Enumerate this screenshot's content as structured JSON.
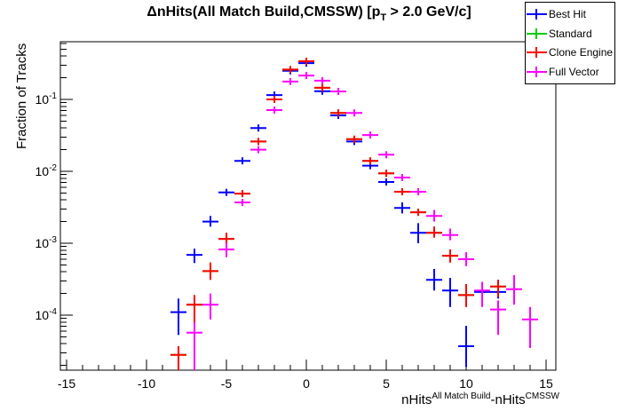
{
  "title": {
    "prefix": "ΔnHits(All Match Build,CMSSW) [p",
    "sub": "T",
    "suffix": " > 2.0 GeV/c]"
  },
  "xlabel_parts": {
    "base1": "nHits",
    "sup1": "All Match Build",
    "base2": "-nHits",
    "sup2": "CMSSW"
  },
  "legend": {
    "items": [
      {
        "label": "Best Hit",
        "color": "#0000ff"
      },
      {
        "label": "Standard",
        "color": "#00cc00"
      },
      {
        "label": "Clone Engine",
        "color": "#ff0000"
      },
      {
        "label": "Full Vector",
        "color": "#ff00ff"
      }
    ]
  },
  "colors": {
    "frame": "#000000",
    "background": "#ffffff"
  },
  "chart_data": {
    "type": "scatter",
    "title": "ΔnHits(All Match Build,CMSSW) [p_T > 2.0 GeV/c]",
    "xlabel": "nHits^{All Match Build}-nHits^{CMSSW}",
    "ylabel": "Fraction of Tracks",
    "x_ticks": [
      -15,
      -10,
      -5,
      0,
      5,
      10,
      15
    ],
    "y_tick_exponents": [
      -1,
      -2,
      -3,
      -4
    ],
    "xlim": [
      -15.5,
      15.6
    ],
    "ylim_log": [
      1.72e-05,
      0.65
    ],
    "y_scale": "log",
    "grid": false,
    "bin_width": 1,
    "legend_position": "top-right",
    "marker_style": "cross-with-error-bars",
    "series": [
      {
        "name": "Best Hit",
        "color": "#0000ff",
        "points": [
          [
            -8,
            0.00011,
            5.3e-05,
            0.00017
          ],
          [
            -7,
            0.00069,
            0.00053,
            0.00084
          ],
          [
            -6,
            0.002,
            0.0017,
            0.0024
          ],
          [
            -5,
            0.0051,
            null,
            null
          ],
          [
            -4,
            0.014,
            null,
            null
          ],
          [
            -3,
            0.04,
            null,
            null
          ],
          [
            -2,
            0.115,
            null,
            null
          ],
          [
            -1,
            0.25,
            null,
            null
          ],
          [
            0,
            0.32,
            null,
            null
          ],
          [
            1,
            0.13,
            null,
            null
          ],
          [
            2,
            0.06,
            null,
            null
          ],
          [
            3,
            0.026,
            null,
            null
          ],
          [
            4,
            0.012,
            null,
            null
          ],
          [
            5,
            0.0071,
            null,
            null
          ],
          [
            6,
            0.0031,
            0.0026,
            0.0037
          ],
          [
            7,
            0.0014,
            0.001,
            0.0019
          ],
          [
            8,
            0.00031,
            0.00022,
            0.00044
          ],
          [
            9,
            0.00022,
            0.00013,
            0.00033
          ],
          [
            10,
            3.7e-05,
            1.9e-05,
            7.1e-05
          ],
          [
            11,
            0.00021,
            0.00017,
            0.00026
          ],
          [
            12,
            0.00021,
            0.00017,
            0.00026
          ]
        ]
      },
      {
        "name": "Standard",
        "color": "#00cc00",
        "note": "identical to Clone Engine, drawn underneath and fully hidden",
        "points": [
          [
            -8,
            2.8e-05,
            1.6e-05,
            3.7e-05
          ],
          [
            -7,
            0.00014,
            1.6e-05,
            0.00019
          ],
          [
            -6,
            0.00041,
            0.00031,
            0.00054
          ],
          [
            -5,
            0.00115,
            0.00097,
            0.0014
          ],
          [
            -4,
            0.0049,
            null,
            null
          ],
          [
            -3,
            0.026,
            null,
            null
          ],
          [
            -2,
            0.1,
            null,
            null
          ],
          [
            -1,
            0.26,
            null,
            null
          ],
          [
            0,
            0.34,
            null,
            null
          ],
          [
            1,
            0.145,
            null,
            null
          ],
          [
            2,
            0.065,
            null,
            null
          ],
          [
            3,
            0.028,
            null,
            null
          ],
          [
            4,
            0.014,
            null,
            null
          ],
          [
            5,
            0.0094,
            null,
            null
          ],
          [
            6,
            0.0052,
            null,
            null
          ],
          [
            7,
            0.0027,
            null,
            null
          ],
          [
            8,
            0.0014,
            0.0012,
            0.0017
          ],
          [
            9,
            0.00067,
            0.00054,
            0.00082
          ],
          [
            10,
            0.00019,
            0.00013,
            0.00027
          ],
          [
            12,
            0.00025,
            0.00018,
            0.00031
          ]
        ]
      },
      {
        "name": "Clone Engine",
        "color": "#ff0000",
        "points": [
          [
            -8,
            2.8e-05,
            1.6e-05,
            3.7e-05
          ],
          [
            -7,
            0.00014,
            1.6e-05,
            0.00019
          ],
          [
            -6,
            0.00041,
            0.00031,
            0.00054
          ],
          [
            -5,
            0.00115,
            0.00097,
            0.0014
          ],
          [
            -4,
            0.0049,
            null,
            null
          ],
          [
            -3,
            0.026,
            null,
            null
          ],
          [
            -2,
            0.1,
            null,
            null
          ],
          [
            -1,
            0.26,
            null,
            null
          ],
          [
            0,
            0.34,
            null,
            null
          ],
          [
            1,
            0.145,
            null,
            null
          ],
          [
            2,
            0.065,
            null,
            null
          ],
          [
            3,
            0.028,
            null,
            null
          ],
          [
            4,
            0.014,
            null,
            null
          ],
          [
            5,
            0.0094,
            null,
            null
          ],
          [
            6,
            0.0052,
            null,
            null
          ],
          [
            7,
            0.0027,
            null,
            null
          ],
          [
            8,
            0.0014,
            0.0012,
            0.0017
          ],
          [
            9,
            0.00067,
            0.00054,
            0.00082
          ],
          [
            10,
            0.00019,
            0.00013,
            0.00027
          ],
          [
            12,
            0.00025,
            0.00018,
            0.00031
          ]
        ]
      },
      {
        "name": "Full Vector",
        "color": "#ff00ff",
        "points": [
          [
            -7,
            5.7e-05,
            1.6e-05,
            7.9e-05
          ],
          [
            -6,
            0.00014,
            8.7e-05,
            0.0002
          ],
          [
            -5,
            0.00082,
            0.00064,
            0.001
          ],
          [
            -4,
            0.0037,
            null,
            null
          ],
          [
            -3,
            0.02,
            null,
            null
          ],
          [
            -2,
            0.071,
            null,
            null
          ],
          [
            -1,
            0.177,
            null,
            null
          ],
          [
            0,
            0.215,
            null,
            null
          ],
          [
            1,
            0.182,
            null,
            null
          ],
          [
            2,
            0.129,
            null,
            null
          ],
          [
            3,
            0.065,
            null,
            null
          ],
          [
            4,
            0.032,
            null,
            null
          ],
          [
            5,
            0.017,
            null,
            null
          ],
          [
            6,
            0.0082,
            null,
            null
          ],
          [
            7,
            0.0052,
            null,
            null
          ],
          [
            8,
            0.0024,
            0.002,
            0.0029
          ],
          [
            9,
            0.0013,
            0.0011,
            0.0016
          ],
          [
            10,
            0.0006,
            0.00048,
            0.00075
          ],
          [
            11,
            0.00022,
            0.00013,
            0.00029
          ],
          [
            12,
            0.00012,
            5.3e-05,
            0.00016
          ],
          [
            13,
            0.00023,
            0.00014,
            0.00036
          ],
          [
            14,
            8.7e-05,
            3.5e-05,
            0.00013
          ]
        ]
      }
    ]
  }
}
